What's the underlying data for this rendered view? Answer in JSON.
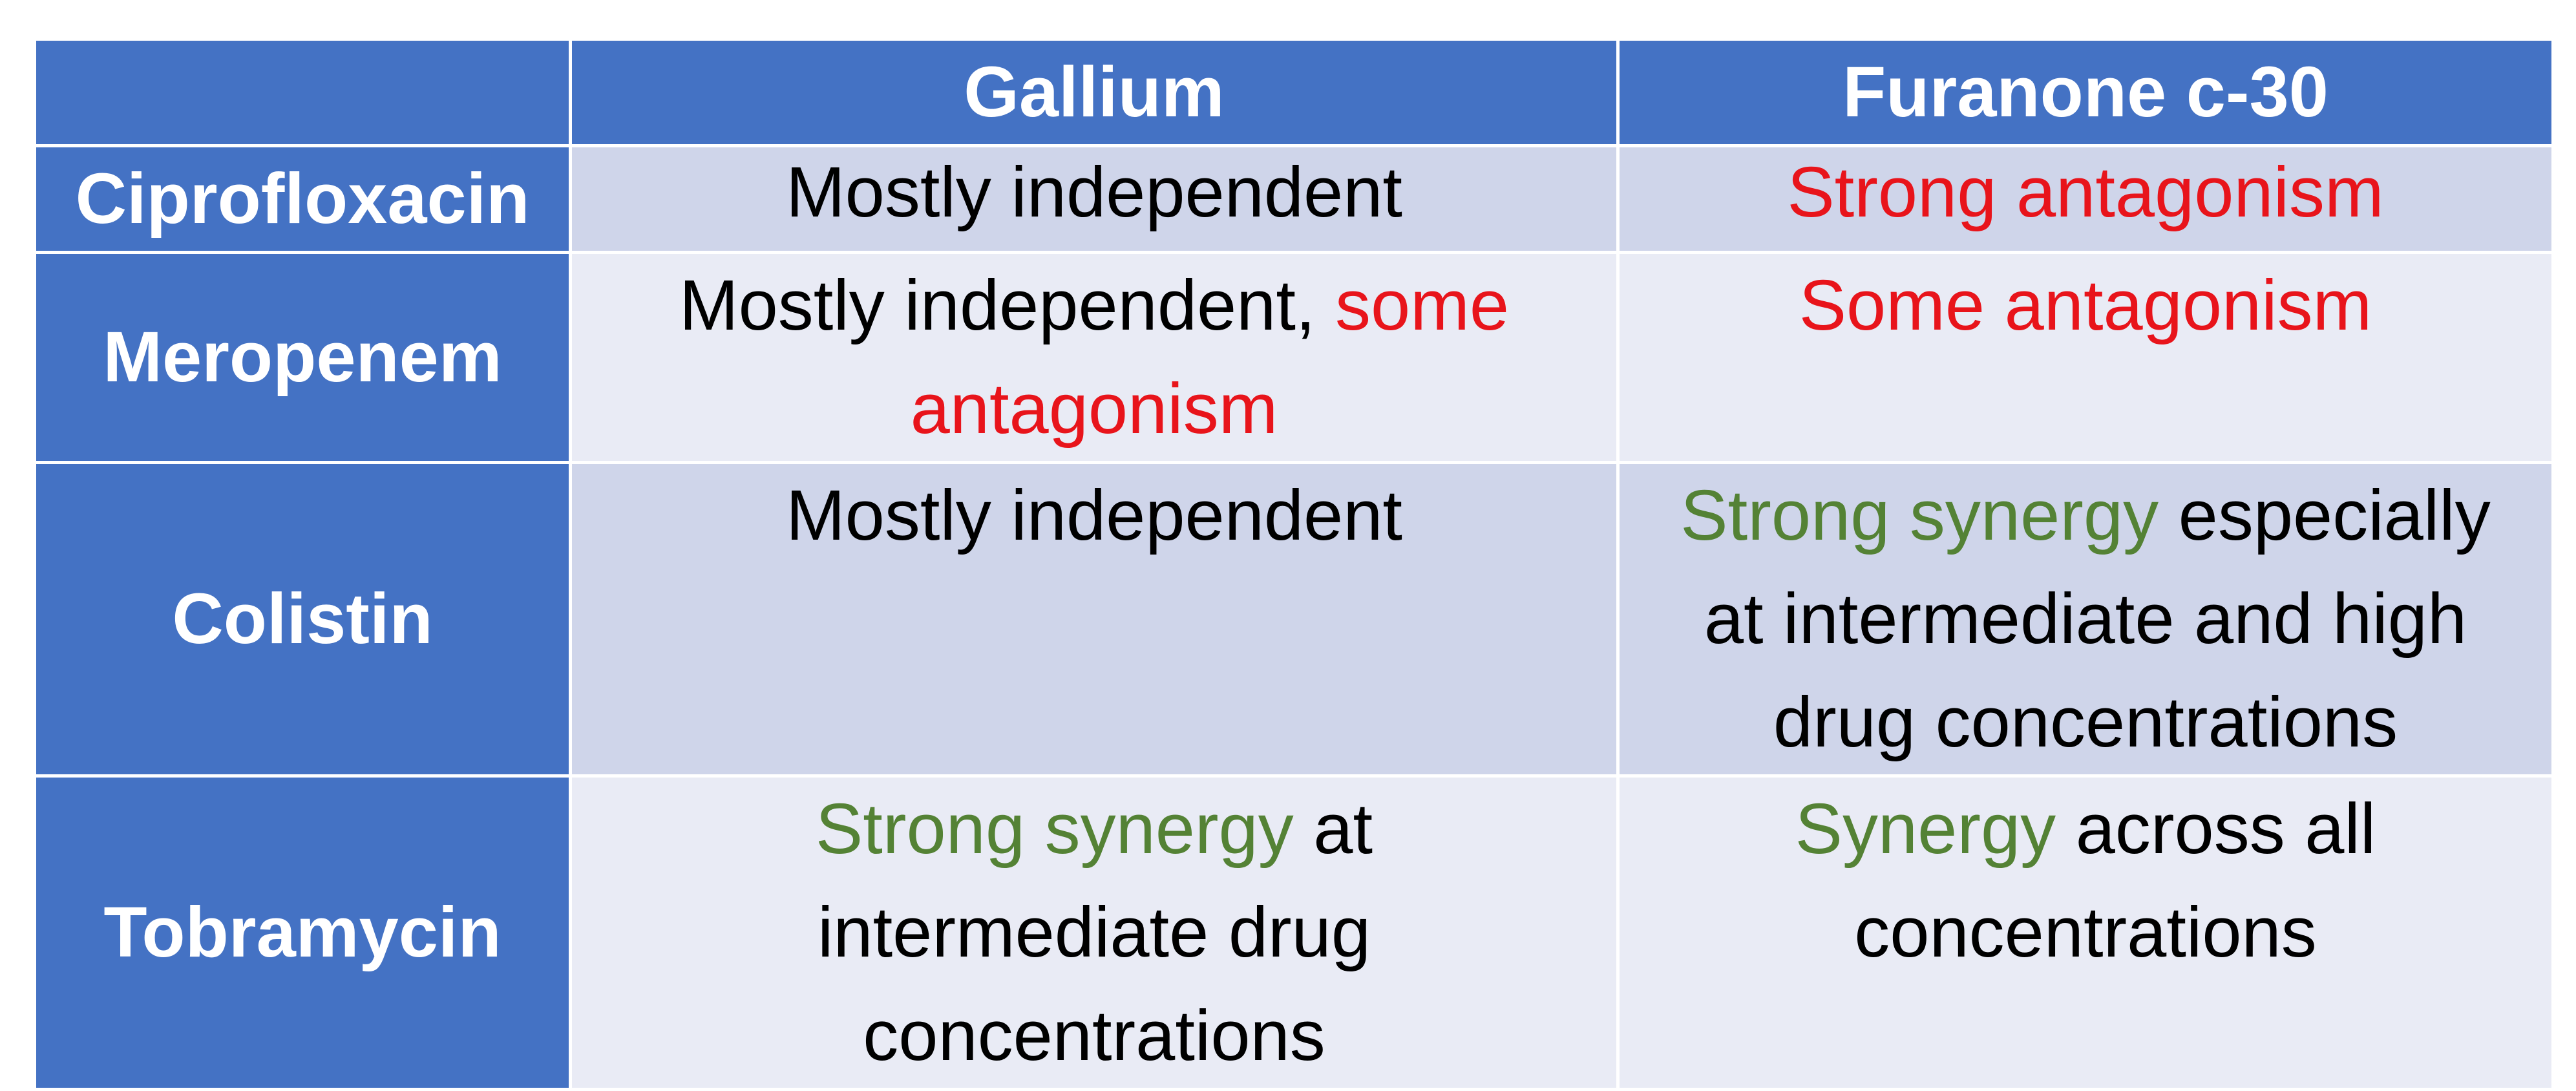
{
  "table": {
    "header": [
      "Gallium",
      "Furanone c-30"
    ],
    "rows": [
      {
        "label": "Ciprofloxacin",
        "cells": [
          [
            {
              "text": "Mostly independent",
              "color": "#000000"
            }
          ],
          [
            {
              "text": "Strong antagonism",
              "color": "#e8141b"
            }
          ]
        ]
      },
      {
        "label": "Meropenem",
        "cells": [
          [
            {
              "text": "Mostly independent, ",
              "color": "#000000"
            },
            {
              "text": "some antagonism",
              "color": "#e8141b"
            }
          ],
          [
            {
              "text": "Some antagonism",
              "color": "#e8141b"
            }
          ]
        ]
      },
      {
        "label": "Colistin",
        "cells": [
          [
            {
              "text": "Mostly independent",
              "color": "#000000"
            }
          ],
          [
            {
              "text": "Strong synergy",
              "color": "#548235"
            },
            {
              "text": " especially at intermediate and high drug concentrations",
              "color": "#000000"
            }
          ]
        ]
      },
      {
        "label": "Tobramycin",
        "cells": [
          [
            {
              "text": "Strong synergy",
              "color": "#548235"
            },
            {
              "text": " at intermediate drug concentrations",
              "color": "#000000"
            }
          ],
          [
            {
              "text": "Synergy",
              "color": "#548235"
            },
            {
              "text": " across all concentrations",
              "color": "#000000"
            }
          ]
        ]
      }
    ]
  }
}
